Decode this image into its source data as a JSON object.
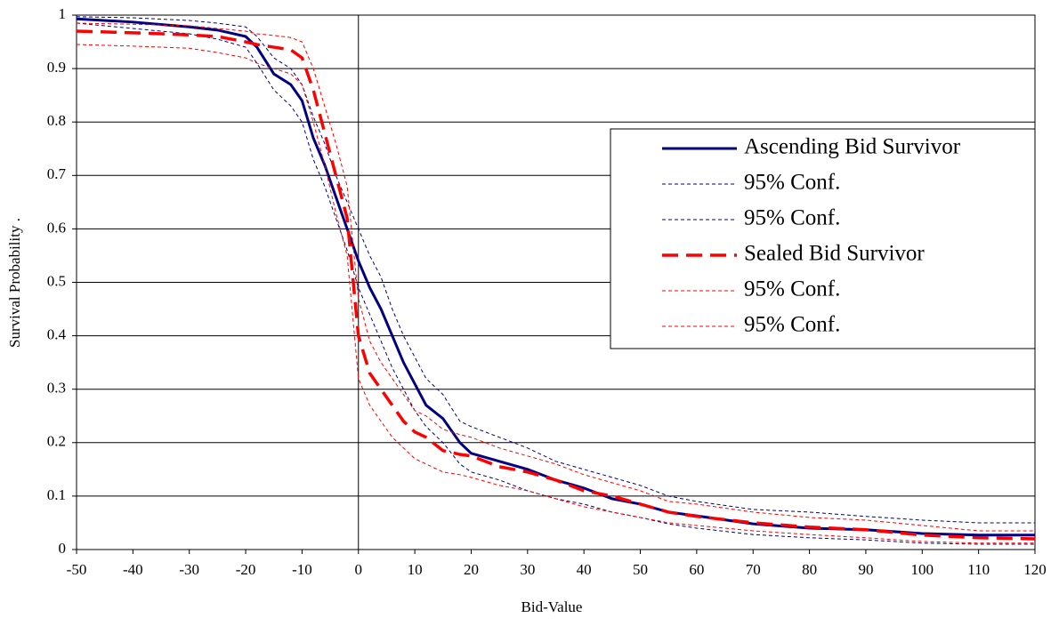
{
  "chart_data": {
    "type": "line",
    "x_label": "Bid-Value",
    "y_label": "Survival Probability   .",
    "x": [
      -50,
      -40,
      -30,
      -25,
      -20,
      -18,
      -15,
      -12,
      -10,
      -8,
      -6,
      -4,
      -2,
      0,
      2,
      4,
      6,
      8,
      10,
      12,
      15,
      18,
      20,
      25,
      30,
      35,
      40,
      45,
      50,
      55,
      60,
      70,
      80,
      90,
      100,
      110,
      120
    ],
    "series": [
      {
        "name": "Ascending Bid Survivor",
        "color": "#000080",
        "dash": "solid",
        "values": [
          0.993,
          0.987,
          0.978,
          0.972,
          0.96,
          0.94,
          0.89,
          0.87,
          0.84,
          0.77,
          0.72,
          0.66,
          0.6,
          0.54,
          0.49,
          0.45,
          0.4,
          0.35,
          0.31,
          0.27,
          0.245,
          0.2,
          0.18,
          0.165,
          0.15,
          0.13,
          0.115,
          0.095,
          0.085,
          0.07,
          0.063,
          0.048,
          0.04,
          0.037,
          0.03,
          0.027,
          0.027
        ]
      },
      {
        "name": "95% Conf.",
        "color": "#000080",
        "dash": "fine",
        "values": [
          0.997,
          0.995,
          0.99,
          0.985,
          0.978,
          0.96,
          0.92,
          0.9,
          0.87,
          0.81,
          0.76,
          0.7,
          0.65,
          0.6,
          0.55,
          0.51,
          0.45,
          0.4,
          0.36,
          0.32,
          0.29,
          0.24,
          0.23,
          0.21,
          0.19,
          0.165,
          0.15,
          0.135,
          0.12,
          0.1,
          0.09,
          0.075,
          0.07,
          0.062,
          0.055,
          0.05,
          0.05
        ]
      },
      {
        "name": "95% Conf.",
        "color": "#000080",
        "dash": "fine",
        "values": [
          0.985,
          0.975,
          0.965,
          0.955,
          0.94,
          0.91,
          0.86,
          0.83,
          0.8,
          0.73,
          0.68,
          0.62,
          0.56,
          0.49,
          0.44,
          0.39,
          0.34,
          0.3,
          0.26,
          0.23,
          0.2,
          0.16,
          0.145,
          0.13,
          0.11,
          0.095,
          0.085,
          0.07,
          0.06,
          0.048,
          0.04,
          0.028,
          0.022,
          0.018,
          0.012,
          0.01,
          0.01
        ]
      },
      {
        "name": "Sealed Bid Survivor",
        "color": "#ff0000",
        "dash": "long",
        "values": [
          0.97,
          0.967,
          0.963,
          0.96,
          0.95,
          0.945,
          0.94,
          0.935,
          0.92,
          0.86,
          0.78,
          0.7,
          0.62,
          0.4,
          0.33,
          0.3,
          0.27,
          0.24,
          0.22,
          0.21,
          0.185,
          0.178,
          0.175,
          0.155,
          0.145,
          0.13,
          0.11,
          0.1,
          0.085,
          0.07,
          0.062,
          0.05,
          0.042,
          0.037,
          0.027,
          0.022,
          0.02
        ]
      },
      {
        "name": "95% Conf.",
        "color": "#ff0000",
        "dash": "fine",
        "values": [
          0.985,
          0.983,
          0.98,
          0.975,
          0.97,
          0.965,
          0.962,
          0.958,
          0.95,
          0.9,
          0.83,
          0.76,
          0.68,
          0.47,
          0.39,
          0.35,
          0.32,
          0.29,
          0.26,
          0.25,
          0.225,
          0.215,
          0.21,
          0.19,
          0.175,
          0.16,
          0.14,
          0.125,
          0.11,
          0.09,
          0.085,
          0.07,
          0.06,
          0.055,
          0.045,
          0.035,
          0.035
        ]
      },
      {
        "name": "95% Conf.",
        "color": "#ff0000",
        "dash": "fine",
        "values": [
          0.945,
          0.942,
          0.938,
          0.93,
          0.92,
          0.91,
          0.9,
          0.89,
          0.87,
          0.8,
          0.72,
          0.63,
          0.55,
          0.32,
          0.27,
          0.24,
          0.21,
          0.19,
          0.17,
          0.16,
          0.145,
          0.14,
          0.135,
          0.12,
          0.11,
          0.095,
          0.08,
          0.07,
          0.06,
          0.05,
          0.045,
          0.035,
          0.028,
          0.022,
          0.015,
          0.012,
          0.012
        ]
      }
    ],
    "xlim": [
      -50,
      120
    ],
    "xticks": [
      -50,
      -40,
      -30,
      -20,
      -10,
      0,
      10,
      20,
      30,
      40,
      50,
      60,
      70,
      80,
      90,
      100,
      110,
      120
    ],
    "ylim": [
      0,
      1
    ],
    "yticks": [
      0,
      0.1,
      0.2,
      0.3,
      0.4,
      0.5,
      0.6,
      0.7,
      0.8,
      0.9,
      1
    ],
    "grid": true,
    "legend": "right"
  }
}
